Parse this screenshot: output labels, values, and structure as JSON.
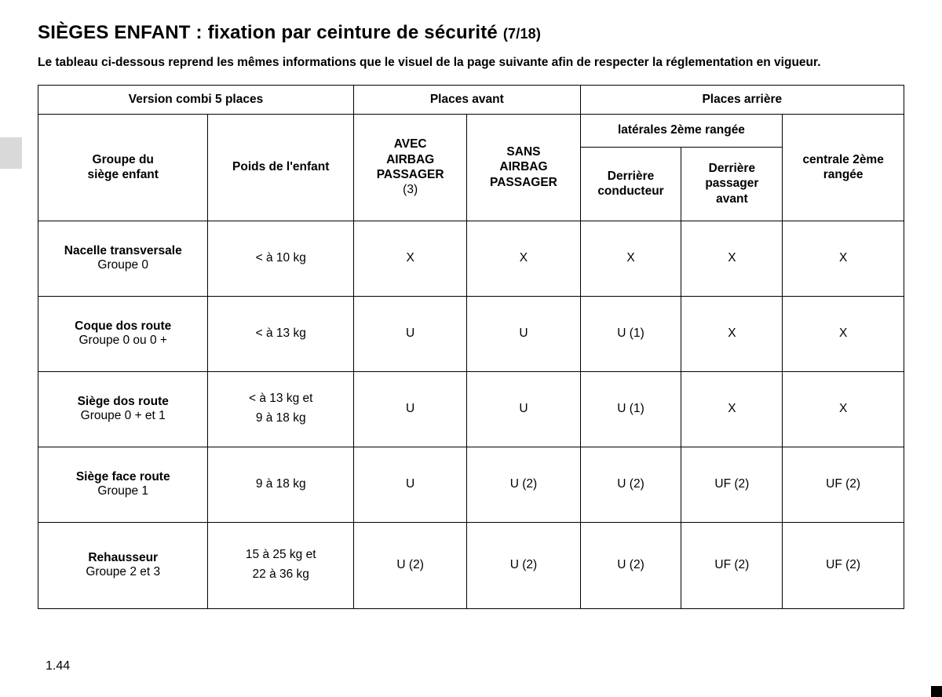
{
  "title_main": "SIÈGES ENFANT :",
  "title_sub": "fixation par ceinture de sécurité",
  "title_page": "(7/18)",
  "intro": "Le tableau ci-dessous reprend les mêmes informations que le visuel de la page suivante afin de respecter la réglementation en vigueur.",
  "headers": {
    "version": "Version combi 5 places",
    "front": "Places avant",
    "rear": "Places arrière",
    "group": "Groupe du\nsiège enfant",
    "weight": "Poids de l'enfant",
    "avec": "AVEC\nAIRBAG\nPASSAGER",
    "avec_note": "(3)",
    "sans": "SANS\nAIRBAG\nPASSAGER",
    "lat": "latérales 2ème rangée",
    "dc": "Derrière\nconducteur",
    "dp": "Derrière\npassager\navant",
    "cent": "centrale 2ème\nrangée"
  },
  "rows": [
    {
      "name": "Nacelle transversale",
      "grp": "Groupe 0",
      "weight": "< à 10 kg",
      "cells": [
        "X",
        "X",
        "X",
        "X",
        "X"
      ]
    },
    {
      "name": "Coque dos route",
      "grp": "Groupe 0 ou 0 +",
      "weight": "< à 13 kg",
      "cells": [
        "U",
        "U",
        "U (1)",
        "X",
        "X"
      ]
    },
    {
      "name": "Siège dos route",
      "grp": "Groupe 0 + et 1",
      "weight": "< à 13 kg et\n9 à 18 kg",
      "cells": [
        "U",
        "U",
        "U (1)",
        "X",
        "X"
      ]
    },
    {
      "name": "Siège face route",
      "grp": "Groupe 1",
      "weight": "9 à 18 kg",
      "cells": [
        "U",
        "U (2)",
        "U (2)",
        "UF (2)",
        "UF (2)"
      ]
    },
    {
      "name": "Rehausseur",
      "grp": "Groupe 2 et 3",
      "weight": "15 à 25 kg et\n22 à 36 kg",
      "cells": [
        "U (2)",
        "U (2)",
        "U (2)",
        "UF (2)",
        "UF (2)"
      ],
      "tall": true
    }
  ],
  "footer": "1.44"
}
